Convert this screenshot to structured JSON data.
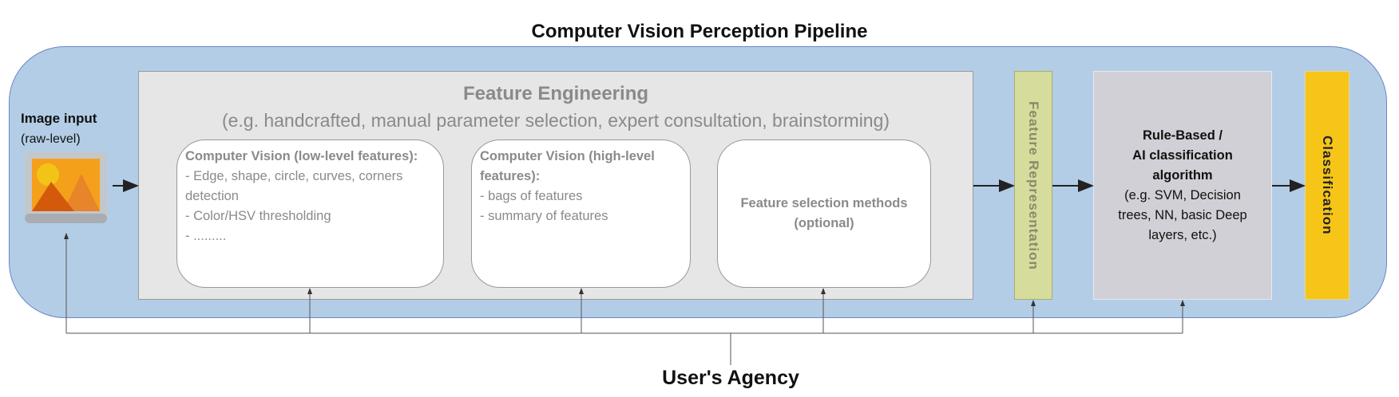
{
  "title": "Computer Vision Perception Pipeline",
  "input": {
    "label": "Image input",
    "sublabel": "(raw-level)",
    "icon": "image-icon"
  },
  "feature_engineering": {
    "title": "Feature Engineering",
    "subtitle": "(e.g. handcrafted, manual parameter selection, expert consultation, brainstorming)",
    "cards": [
      {
        "heading": "Computer Vision (low-level features):",
        "lines": [
          "- Edge, shape, circle, curves, corners detection",
          "- Color/HSV thresholding",
          "- ........."
        ]
      },
      {
        "heading": "Computer Vision (high-level features):",
        "lines": [
          "- bags of features",
          "- summary of features"
        ]
      },
      {
        "heading": "Feature selection methods (optional)",
        "lines": []
      }
    ]
  },
  "feature_representation": "Feature Representation",
  "algorithm": {
    "line1": "Rule-Based /",
    "line2": "AI classification",
    "line3": "algorithm",
    "detail": "(e.g. SVM, Decision trees, NN, basic Deep layers, etc.)"
  },
  "classification": "Classification",
  "agency": "User's Agency",
  "colors": {
    "outer": "#b3cde6",
    "feature_engineering": "#e6e6e6",
    "feature_representation": "#d6dc9c",
    "algorithm": "#d0d0d6",
    "classification": "#f6c518"
  }
}
